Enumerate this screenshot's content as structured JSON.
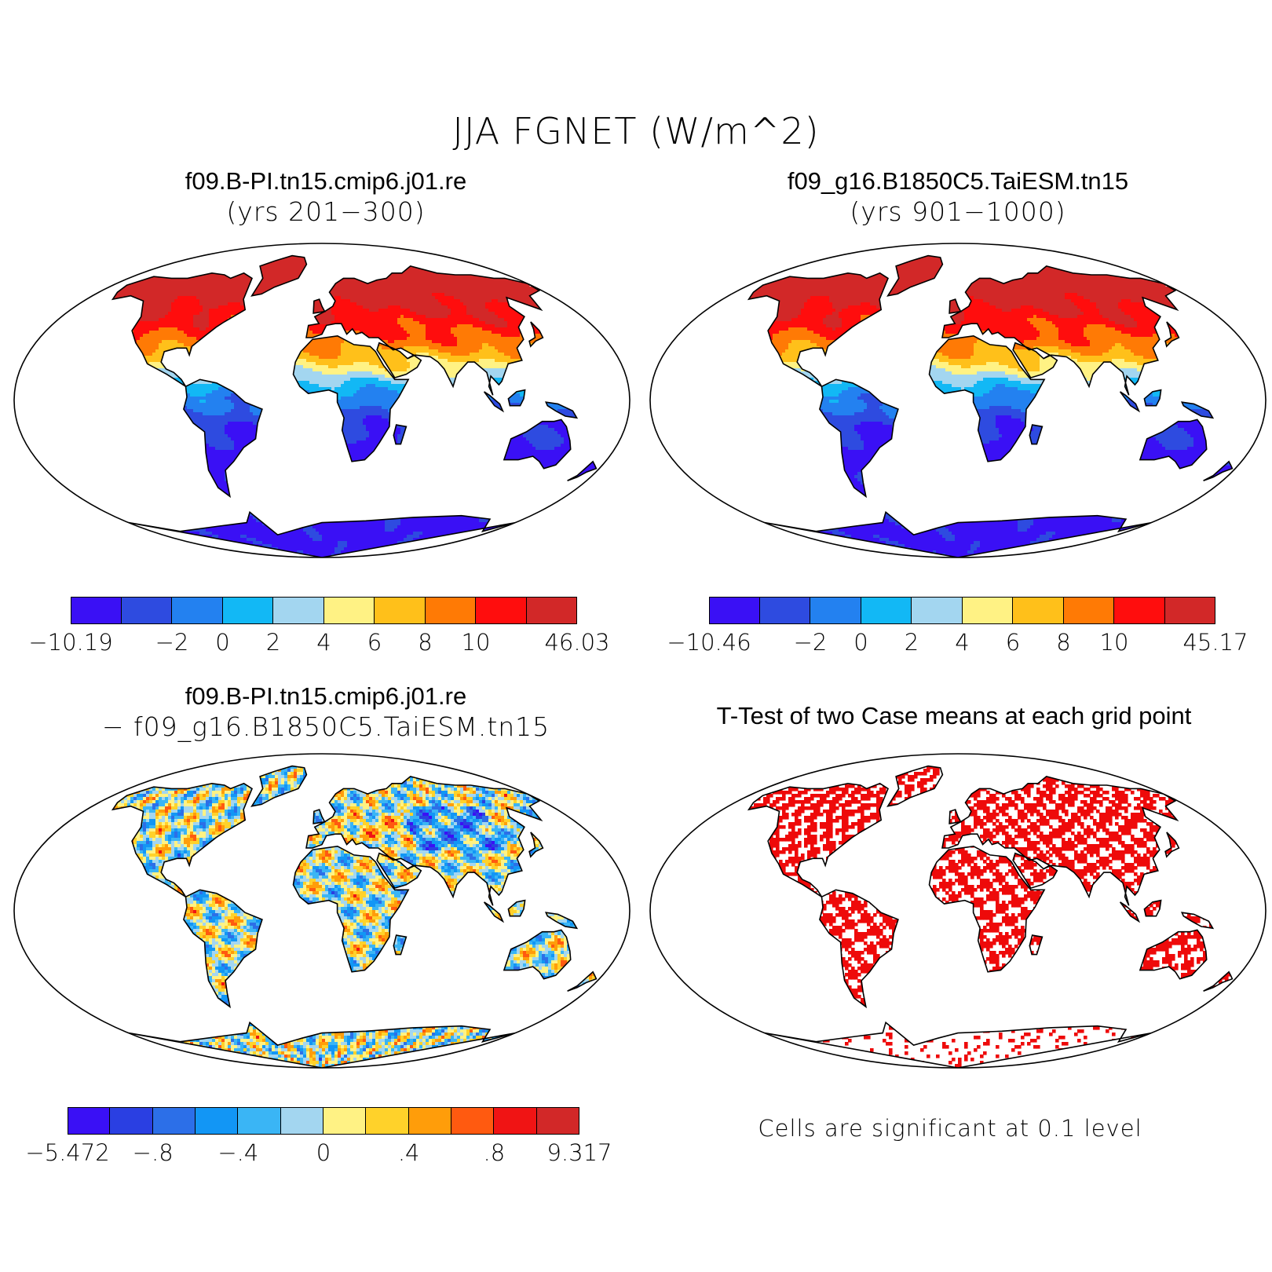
{
  "title": "JJA FGNET (W/m^2)",
  "panels": [
    {
      "title_line1": "f09.B-PI.tn15.cmip6.j01.re",
      "title_line2": "(yrs 201−300)",
      "type": "field",
      "colorbar": {
        "labels": [
          "−10.19",
          "−2",
          "0",
          "2",
          "4",
          "6",
          "8",
          "10",
          "46.03"
        ]
      }
    },
    {
      "title_line1": "f09_g16.B1850C5.TaiESM.tn15",
      "title_line2": "(yrs 901−1000)",
      "type": "field",
      "colorbar": {
        "labels": [
          "−10.46",
          "−2",
          "0",
          "2",
          "4",
          "6",
          "8",
          "10",
          "45.17"
        ]
      }
    },
    {
      "title_line1": "f09.B-PI.tn15.cmip6.j01.re",
      "title_line2": "− f09_g16.B1850C5.TaiESM.tn15",
      "type": "diff",
      "colorbar": {
        "labels": [
          "−5.472",
          "−.8",
          "−.4",
          "0",
          ".4",
          ".8",
          "9.317"
        ]
      }
    },
    {
      "title_line1": "T-Test of two Case means at each grid point",
      "title_line2": "",
      "type": "ttest",
      "note": "Cells are significant at 0.1 level"
    }
  ],
  "colors": {
    "scale10": [
      "#3a10f5",
      "#2e4be0",
      "#2381f0",
      "#12b8f5",
      "#a3d6f0",
      "#fff284",
      "#ffc01a",
      "#ff7a05",
      "#ff0d0d",
      "#d22828"
    ],
    "scale12": [
      "#3a10f5",
      "#2a3fe2",
      "#2c6fe8",
      "#1296f5",
      "#3ab5f5",
      "#a3d6f0",
      "#fff284",
      "#ffd22a",
      "#ff9d0a",
      "#ff5a10",
      "#f01414",
      "#d22828"
    ],
    "significant": "#ee0a0a",
    "coast": "#000000"
  }
}
